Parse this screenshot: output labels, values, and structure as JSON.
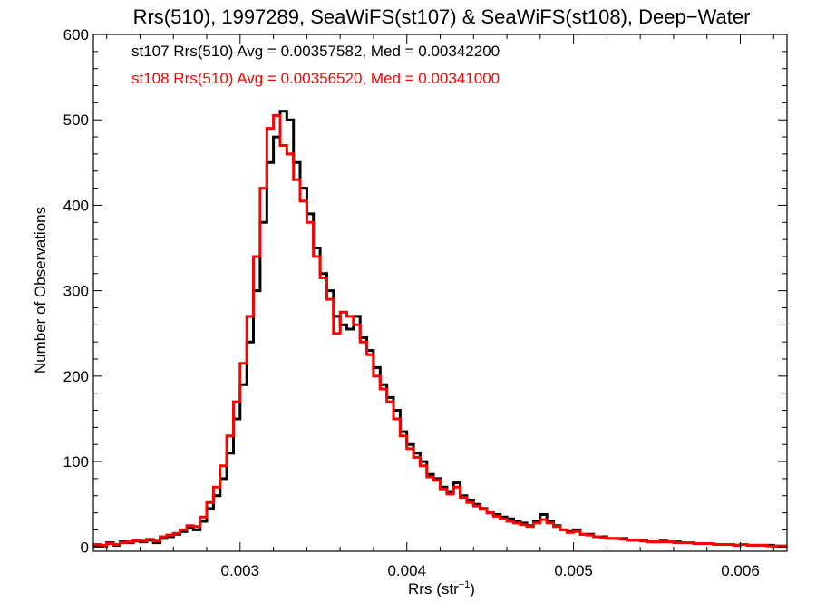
{
  "chart_data": {
    "type": "line",
    "title": "Rrs(510), 1997289, SeaWiFS(st107) & SeaWiFS(st108), Deep−Water",
    "xlabel": "Rrs (str",
    "xlabel_sup": "−1",
    "xlabel_end": ")",
    "ylabel": "Number of Observations",
    "xlim": [
      0.00212,
      0.00628
    ],
    "ylim": [
      -5,
      600
    ],
    "x_ticks": [
      0.003,
      0.004,
      0.005,
      0.006
    ],
    "x_tick_labels": [
      "0.003",
      "0.004",
      "0.005",
      "0.006"
    ],
    "y_ticks": [
      0,
      100,
      200,
      300,
      400,
      500,
      600
    ],
    "y_tick_labels": [
      "0",
      "100",
      "200",
      "300",
      "400",
      "500",
      "600"
    ],
    "grid": false,
    "annotations": [
      {
        "text": "st107 Rrs(510) Avg = 0.00357582, Med = 0.00342200",
        "color": "#000000"
      },
      {
        "text": "st108 Rrs(510) Avg = 0.00356520, Med = 0.00341000",
        "color": "#ff0000"
      }
    ],
    "bin_width": 2e-05,
    "series": [
      {
        "color": "#000000",
        "x": [
          0.00212,
          0.00216,
          0.0022,
          0.00224,
          0.00228,
          0.00232,
          0.00236,
          0.0024,
          0.00244,
          0.00248,
          0.00252,
          0.00256,
          0.0026,
          0.00264,
          0.00268,
          0.00272,
          0.00276,
          0.0028,
          0.00284,
          0.00288,
          0.00292,
          0.00296,
          0.003,
          0.00304,
          0.00308,
          0.00312,
          0.00316,
          0.0032,
          0.00324,
          0.00328,
          0.00332,
          0.00336,
          0.0034,
          0.00344,
          0.00348,
          0.00352,
          0.00356,
          0.0036,
          0.00364,
          0.00368,
          0.00372,
          0.00376,
          0.0038,
          0.00384,
          0.00388,
          0.00392,
          0.00396,
          0.004,
          0.00404,
          0.00408,
          0.00412,
          0.00416,
          0.0042,
          0.00424,
          0.00428,
          0.00432,
          0.00436,
          0.0044,
          0.00444,
          0.00448,
          0.00452,
          0.00456,
          0.0046,
          0.00464,
          0.00468,
          0.00472,
          0.00476,
          0.0048,
          0.00484,
          0.00488,
          0.00492,
          0.00496,
          0.005,
          0.00504,
          0.00508,
          0.00512,
          0.00516,
          0.0052,
          0.00524,
          0.00528,
          0.00532,
          0.00536,
          0.0054,
          0.00544,
          0.00548,
          0.00552,
          0.00556,
          0.0056,
          0.00564,
          0.00568,
          0.00572,
          0.00576,
          0.0058,
          0.00584,
          0.00588,
          0.00592,
          0.00596,
          0.006,
          0.00604,
          0.00608,
          0.00612,
          0.00616,
          0.0062,
          0.00624
        ],
        "values": [
          2,
          1,
          5,
          2,
          6,
          5,
          7,
          6,
          8,
          5,
          10,
          12,
          15,
          18,
          22,
          20,
          30,
          45,
          60,
          80,
          110,
          150,
          190,
          240,
          300,
          380,
          450,
          480,
          510,
          500,
          450,
          420,
          390,
          350,
          320,
          300,
          270,
          260,
          255,
          270,
          245,
          230,
          210,
          190,
          175,
          160,
          135,
          120,
          110,
          100,
          85,
          80,
          70,
          65,
          75,
          60,
          55,
          50,
          45,
          40,
          38,
          35,
          33,
          30,
          28,
          25,
          30,
          38,
          30,
          25,
          20,
          18,
          20,
          15,
          15,
          12,
          12,
          10,
          10,
          10,
          8,
          8,
          8,
          6,
          6,
          7,
          6,
          6,
          5,
          5,
          4,
          4,
          4,
          3,
          3,
          3,
          2,
          3,
          2,
          2,
          2,
          2,
          1,
          1
        ]
      },
      {
        "color": "#ff0000",
        "x": [
          0.00212,
          0.00216,
          0.0022,
          0.00224,
          0.00228,
          0.00232,
          0.00236,
          0.0024,
          0.00244,
          0.00248,
          0.00252,
          0.00256,
          0.0026,
          0.00264,
          0.00268,
          0.00272,
          0.00276,
          0.0028,
          0.00284,
          0.00288,
          0.00292,
          0.00296,
          0.003,
          0.00304,
          0.00308,
          0.00312,
          0.00316,
          0.0032,
          0.00324,
          0.00328,
          0.00332,
          0.00336,
          0.0034,
          0.00344,
          0.00348,
          0.00352,
          0.00356,
          0.0036,
          0.00364,
          0.00368,
          0.00372,
          0.00376,
          0.0038,
          0.00384,
          0.00388,
          0.00392,
          0.00396,
          0.004,
          0.00404,
          0.00408,
          0.00412,
          0.00416,
          0.0042,
          0.00424,
          0.00428,
          0.00432,
          0.00436,
          0.0044,
          0.00444,
          0.00448,
          0.00452,
          0.00456,
          0.0046,
          0.00464,
          0.00468,
          0.00472,
          0.00476,
          0.0048,
          0.00484,
          0.00488,
          0.00492,
          0.00496,
          0.005,
          0.00504,
          0.00508,
          0.00512,
          0.00516,
          0.0052,
          0.00524,
          0.00528,
          0.00532,
          0.00536,
          0.0054,
          0.00544,
          0.00548,
          0.00552,
          0.00556,
          0.0056,
          0.00564,
          0.00568,
          0.00572,
          0.00576,
          0.0058,
          0.00584,
          0.00588,
          0.00592,
          0.00596,
          0.006,
          0.00604,
          0.00608,
          0.00612,
          0.00616,
          0.0062,
          0.00624
        ],
        "values": [
          3,
          2,
          4,
          3,
          5,
          6,
          8,
          7,
          9,
          7,
          12,
          14,
          16,
          20,
          25,
          24,
          35,
          52,
          70,
          95,
          130,
          170,
          215,
          270,
          340,
          420,
          490,
          505,
          470,
          460,
          430,
          405,
          380,
          340,
          315,
          290,
          250,
          275,
          270,
          260,
          240,
          225,
          200,
          185,
          170,
          150,
          130,
          115,
          105,
          95,
          82,
          78,
          68,
          62,
          70,
          58,
          52,
          48,
          44,
          40,
          36,
          33,
          30,
          28,
          26,
          24,
          28,
          32,
          28,
          24,
          20,
          17,
          18,
          15,
          14,
          12,
          11,
          10,
          10,
          9,
          8,
          8,
          7,
          6,
          6,
          6,
          6,
          5,
          5,
          5,
          4,
          4,
          4,
          3,
          3,
          3,
          2,
          3,
          2,
          2,
          2,
          1,
          1,
          1
        ]
      }
    ]
  }
}
